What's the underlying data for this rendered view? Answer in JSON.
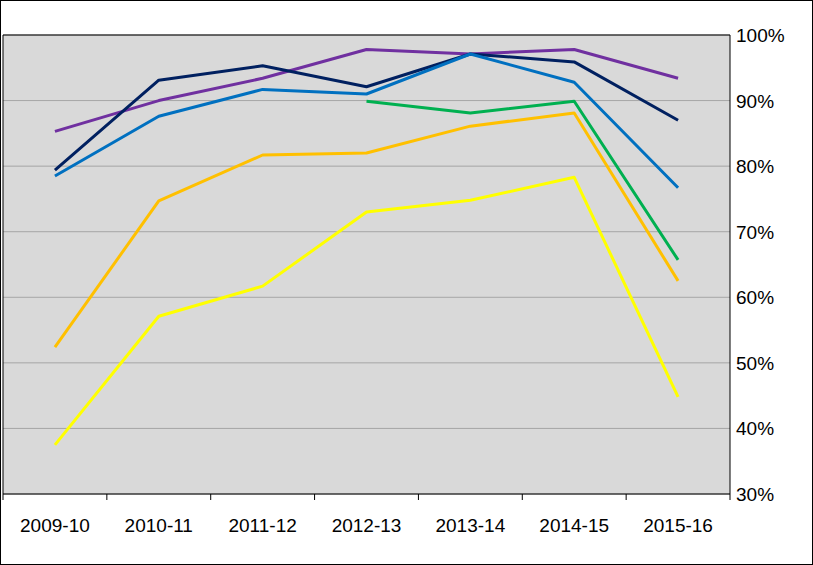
{
  "chart_data": {
    "type": "line",
    "categories": [
      "2009-10",
      "2010-11",
      "2011-12",
      "2012-13",
      "2013-14",
      "2014-15",
      "2015-16"
    ],
    "series": [
      {
        "color": "#7030a0",
        "values": [
          85.3,
          90.0,
          93.4,
          97.8,
          97.1,
          97.8,
          93.4
        ]
      },
      {
        "color": "#002060",
        "values": [
          79.4,
          93.1,
          95.3,
          92.1,
          97.1,
          95.9,
          87.0
        ]
      },
      {
        "color": "#0070c0",
        "values": [
          78.5,
          87.6,
          91.7,
          91.0,
          97.1,
          92.8,
          76.7
        ]
      },
      {
        "color": "#00b050",
        "values": [
          null,
          null,
          null,
          89.9,
          88.1,
          89.9,
          65.7
        ]
      },
      {
        "color": "#ffc000",
        "values": [
          52.4,
          74.7,
          81.7,
          82.0,
          86.1,
          88.1,
          62.5
        ]
      },
      {
        "color": "#ffff00",
        "values": [
          37.5,
          57.1,
          61.7,
          73.0,
          74.8,
          78.3,
          44.8
        ]
      }
    ],
    "ylim": [
      30,
      100
    ],
    "yticks": [
      {
        "value": 30,
        "label": "30%"
      },
      {
        "value": 40,
        "label": "40%"
      },
      {
        "value": 50,
        "label": "50%"
      },
      {
        "value": 60,
        "label": "60%"
      },
      {
        "value": 70,
        "label": "70%"
      },
      {
        "value": 80,
        "label": "80%"
      },
      {
        "value": 90,
        "label": "90%"
      },
      {
        "value": 100,
        "label": "100%"
      }
    ],
    "grid": true
  }
}
